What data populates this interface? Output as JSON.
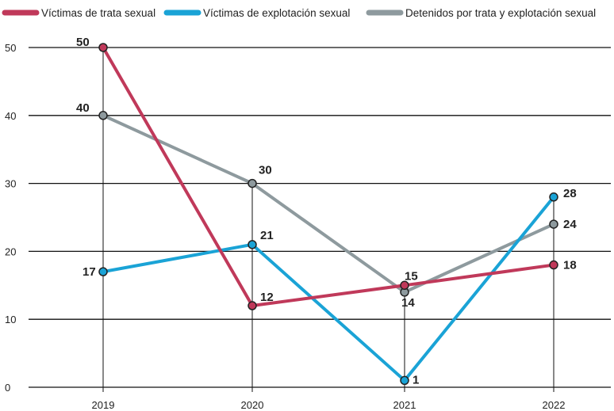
{
  "chart_data": {
    "type": "line",
    "title": "",
    "xlabel": "",
    "ylabel": "",
    "categories": [
      "2019",
      "2020",
      "2021",
      "2022"
    ],
    "ylim": [
      0,
      50
    ],
    "yticks": [
      "0",
      "10",
      "20",
      "30",
      "40",
      "50"
    ],
    "grid": "horizontal",
    "legend_position": "top",
    "series": [
      {
        "name": "Víctimas de trata sexual",
        "color": "#c0395a",
        "values": [
          50,
          12,
          15,
          18
        ],
        "labels": [
          "50",
          "12",
          "15",
          "18"
        ]
      },
      {
        "name": "Víctimas de explotación sexual",
        "color": "#1aa3d6",
        "values": [
          17,
          21,
          1,
          28
        ],
        "labels": [
          "17",
          "21",
          "1",
          "28"
        ]
      },
      {
        "name": "Detenidos por trata y explotación sexual",
        "color": "#8e9a9e",
        "values": [
          40,
          30,
          14,
          24
        ],
        "labels": [
          "40",
          "30",
          "14",
          "24"
        ]
      }
    ]
  }
}
